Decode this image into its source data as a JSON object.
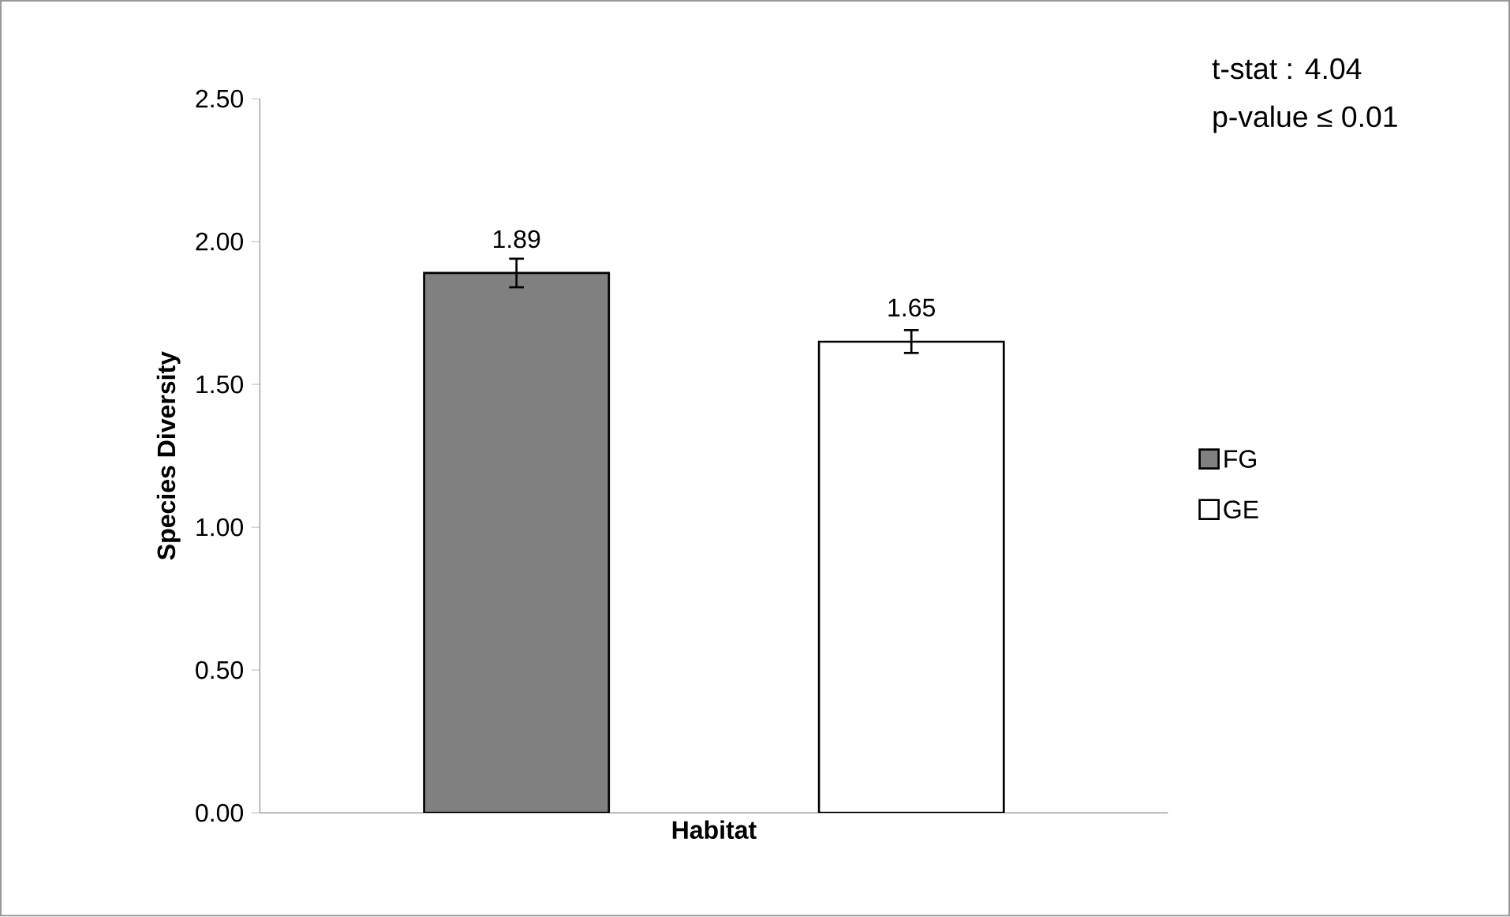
{
  "chart_data": {
    "type": "bar",
    "xlabel": "Habitat",
    "ylabel": "Species Diversity",
    "categories": [
      null
    ],
    "series": [
      {
        "name": "FG",
        "color": "#808080",
        "values": [
          1.89
        ],
        "errors": [
          0.05
        ]
      },
      {
        "name": "GE",
        "color": "#ffffff",
        "values": [
          1.65
        ],
        "errors": [
          0.04
        ]
      }
    ],
    "ylim": [
      0,
      2.5
    ],
    "yticks": [
      {
        "value": 0,
        "label": "0.00"
      },
      {
        "value": 0.5,
        "label": "0.50"
      },
      {
        "value": 1,
        "label": "1.00"
      },
      {
        "value": 1.5,
        "label": "1.50"
      },
      {
        "value": 2,
        "label": "2.00"
      },
      {
        "value": 2.5,
        "label": "2.50"
      }
    ],
    "data_labels": true,
    "legend": "right",
    "annotations": [
      "t-stat : 4.04",
      "p-value ≤ 0.01"
    ]
  }
}
